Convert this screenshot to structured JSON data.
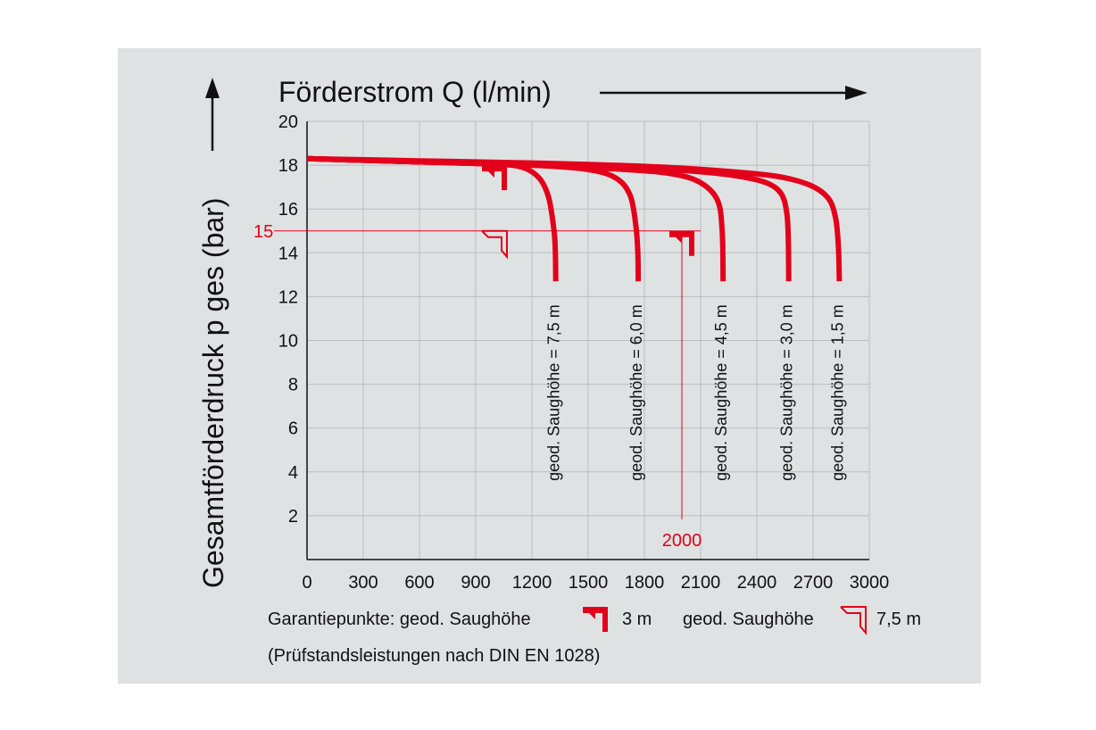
{
  "colors": {
    "background": "#dfe2e3",
    "curve": "#e3001b",
    "grid": "#b9bdc0",
    "axis": "#111111",
    "marker": "#e3001b"
  },
  "chart_data": {
    "type": "line",
    "xlabel": "Förderstrom Q (l/min)",
    "ylabel": "Gesamtförderdruck p ges (bar)",
    "xlim": [
      0,
      3000
    ],
    "ylim": [
      0,
      20
    ],
    "xticks": [
      0,
      300,
      600,
      900,
      1200,
      1500,
      1800,
      2100,
      2400,
      2700,
      3000
    ],
    "yticks": [
      2,
      4,
      6,
      8,
      10,
      12,
      14,
      16,
      18,
      20
    ],
    "grid": true,
    "series": [
      {
        "name": "geod. Saughöhe = 7,5 m",
        "x": [
          0,
          600,
          1000,
          1150,
          1240,
          1290,
          1318,
          1325,
          1327
        ],
        "y": [
          18.3,
          18.15,
          18.05,
          17.9,
          17.4,
          16.5,
          15.0,
          14.0,
          12.7
        ]
      },
      {
        "name": "geod. Saughöhe = 6,0 m",
        "x": [
          0,
          600,
          1200,
          1500,
          1650,
          1725,
          1755,
          1765,
          1767
        ],
        "y": [
          18.3,
          18.15,
          18.0,
          17.8,
          17.4,
          16.6,
          15.2,
          14.0,
          12.7
        ]
      },
      {
        "name": "geod. Saughöhe = 4,5 m",
        "x": [
          0,
          600,
          1200,
          1700,
          1950,
          2100,
          2190,
          2215,
          2220
        ],
        "y": [
          18.3,
          18.15,
          18.0,
          17.8,
          17.6,
          17.2,
          16.4,
          15.0,
          12.7
        ]
      },
      {
        "name": "geod. Saughöhe = 3,0 m",
        "x": [
          0,
          600,
          1200,
          1800,
          2100,
          2300,
          2450,
          2530,
          2560,
          2568,
          2570
        ],
        "y": [
          18.3,
          18.15,
          18.05,
          17.85,
          17.7,
          17.5,
          17.2,
          16.7,
          15.8,
          14.5,
          12.7
        ]
      },
      {
        "name": "geod. Saughöhe = 1,5 m",
        "x": [
          0,
          600,
          1200,
          1800,
          2200,
          2500,
          2680,
          2780,
          2820,
          2835,
          2840
        ],
        "y": [
          18.3,
          18.2,
          18.1,
          17.95,
          17.75,
          17.5,
          17.1,
          16.5,
          15.6,
          14.3,
          12.7
        ]
      }
    ],
    "reference_lines": {
      "y_value": 15,
      "y_label": "15",
      "x_value": 2000,
      "x_label": "2000"
    },
    "guarantee_points": [
      {
        "x": 1000,
        "y": 18,
        "type": "filled"
      },
      {
        "x": 1000,
        "y": 15,
        "type": "outline"
      },
      {
        "x": 2000,
        "y": 15,
        "type": "filled"
      }
    ]
  },
  "legend": {
    "prefix": "Garantiepunkte: geod. Saughöhe",
    "filled_value": "3 m",
    "outline_prefix": "geod. Saughöhe",
    "outline_value": "7,5 m",
    "note": "(Prüfstandsleistungen nach DIN EN 1028)"
  }
}
